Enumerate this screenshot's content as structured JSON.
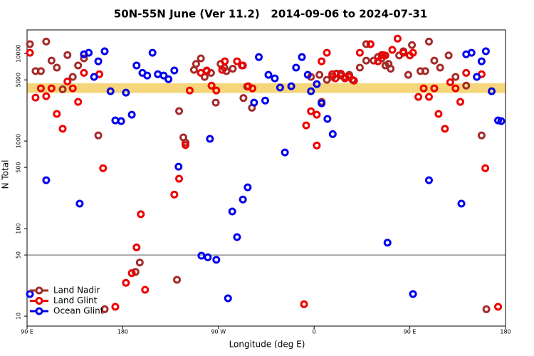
{
  "chart_data": {
    "type": "scatter",
    "title": "50N-55N June (Ver 11.2)   2014-09-06 to 2024-07-31",
    "x_label": "Longitude (deg E)",
    "y_label": "N Total",
    "xlim": [
      90,
      540
    ],
    "xticks": [
      {
        "value": 90,
        "label": "90 E"
      },
      {
        "value": 180,
        "label": "180"
      },
      {
        "value": 270,
        "label": "90 W"
      },
      {
        "value": 360,
        "label": "0"
      },
      {
        "value": 450,
        "label": "90 E"
      },
      {
        "value": 540,
        "label": "180"
      }
    ],
    "ylim": [
      7.7,
      18600
    ],
    "log_scale": true,
    "yticks": [
      10,
      50,
      100,
      500,
      1000,
      5000,
      10000
    ],
    "hline": 50,
    "band": [
      3540,
      4570
    ],
    "band_color": "#f5d67a",
    "legend": "lower left",
    "series": [
      {
        "name": "Land Nadir",
        "color": "#a52a2a",
        "x": [
          92.7,
          98,
          103,
          108,
          113,
          118,
          123.5,
          128,
          133,
          138,
          143.5,
          157,
          163,
          192,
          196,
          231,
          233,
          237,
          239,
          247,
          249,
          253.5,
          257,
          259,
          263,
          267.5,
          272,
          275.5,
          277.5,
          283.5,
          292,
          293.5,
          297,
          301.5,
          357,
          365,
          367,
          372,
          377,
          381,
          385,
          389,
          393,
          396,
          403,
          409,
          413,
          409,
          416,
          420,
          423.5,
          425,
          427,
          430,
          432,
          440,
          444,
          448.5,
          452,
          460,
          464.5,
          468,
          473,
          478.5,
          486.5,
          493,
          503,
          517.5,
          522
        ],
        "values": [
          12800,
          6300,
          6300,
          13700,
          8300,
          6900,
          3900,
          9600,
          5400,
          7300,
          8800,
          1160,
          12,
          32,
          41,
          26,
          2200,
          1100,
          960,
          6500,
          7600,
          8800,
          5400,
          6300,
          6000,
          2750,
          7600,
          6900,
          6300,
          6700,
          7300,
          3100,
          4200,
          2400,
          5400,
          5700,
          2800,
          5000,
          5400,
          5900,
          5600,
          5400,
          5700,
          5000,
          6900,
          12800,
          12800,
          8300,
          8300,
          9100,
          8800,
          9600,
          7300,
          7600,
          6700,
          9500,
          10600,
          5700,
          12500,
          6300,
          6300,
          13700,
          8300,
          6900,
          9500,
          5400,
          4300,
          1160,
          12
        ]
      },
      {
        "name": "Land Glint",
        "color": "#ee0000",
        "x": [
          92.7,
          98,
          103,
          108,
          113,
          118,
          123.5,
          128,
          133,
          138,
          143.5,
          158,
          161.5,
          173,
          183,
          188.5,
          193,
          197,
          201,
          228.5,
          233,
          239,
          243,
          253.5,
          259,
          263.5,
          268,
          273.5,
          276,
          287.5,
          293,
          298,
          302,
          350.5,
          352.5,
          357,
          362.5,
          362.5,
          367,
          372,
          377,
          380,
          385,
          389,
          393,
          397.5,
          403,
          413,
          420,
          423.5,
          427,
          433.5,
          438.5,
          444,
          450,
          453,
          458,
          463,
          468,
          473,
          477,
          483,
          488,
          493,
          497.5,
          503,
          517.5,
          521,
          533
        ],
        "values": [
          10200,
          3130,
          4000,
          3250,
          4000,
          2040,
          1380,
          4800,
          4000,
          2800,
          6000,
          5800,
          490,
          12.8,
          24,
          31,
          61,
          146,
          20,
          245,
          371,
          900,
          3780,
          6000,
          6400,
          4300,
          3780,
          6500,
          8150,
          8150,
          7300,
          4230,
          4000,
          13.7,
          1510,
          2190,
          2000,
          890,
          8150,
          10200,
          5800,
          5200,
          5900,
          5200,
          5400,
          4900,
          10200,
          12800,
          8150,
          9600,
          9500,
          11000,
          14800,
          10200,
          9500,
          10200,
          3190,
          4000,
          3190,
          4000,
          2040,
          1380,
          4700,
          4000,
          2800,
          6000,
          5800,
          490,
          12.8
        ]
      },
      {
        "name": "Ocean Glint",
        "color": "#0000ee",
        "x": [
          92.7,
          108,
          139.5,
          143.5,
          148,
          153,
          157,
          163,
          168.5,
          173,
          178.5,
          183,
          188.5,
          193,
          198.5,
          203,
          208,
          213,
          218.5,
          223,
          228.5,
          232.5,
          254,
          260,
          262,
          268,
          279,
          283,
          287.5,
          293,
          297.5,
          303.5,
          308,
          314,
          317,
          323,
          328,
          332.5,
          338.5,
          343,
          348.5,
          354,
          357,
          362.5,
          367,
          372.5,
          377.5,
          429,
          453,
          468,
          498.5,
          503,
          508,
          513,
          517.5,
          521.5,
          527,
          533,
          536
        ],
        "values": [
          17.9,
          357,
          193,
          9800,
          10200,
          5400,
          8150,
          10600,
          3710,
          1720,
          1690,
          3570,
          2000,
          7300,
          6000,
          5600,
          10200,
          5800,
          5600,
          5090,
          6400,
          509,
          49,
          47,
          1060,
          44,
          16,
          157,
          80,
          215,
          296,
          2750,
          9100,
          2900,
          5700,
          5200,
          4080,
          741,
          4230,
          6900,
          9100,
          5700,
          3710,
          4470,
          2700,
          1790,
          1200,
          69,
          17.9,
          357,
          193,
          9800,
          10200,
          5400,
          8150,
          10600,
          3710,
          1720,
          1690
        ]
      }
    ]
  }
}
